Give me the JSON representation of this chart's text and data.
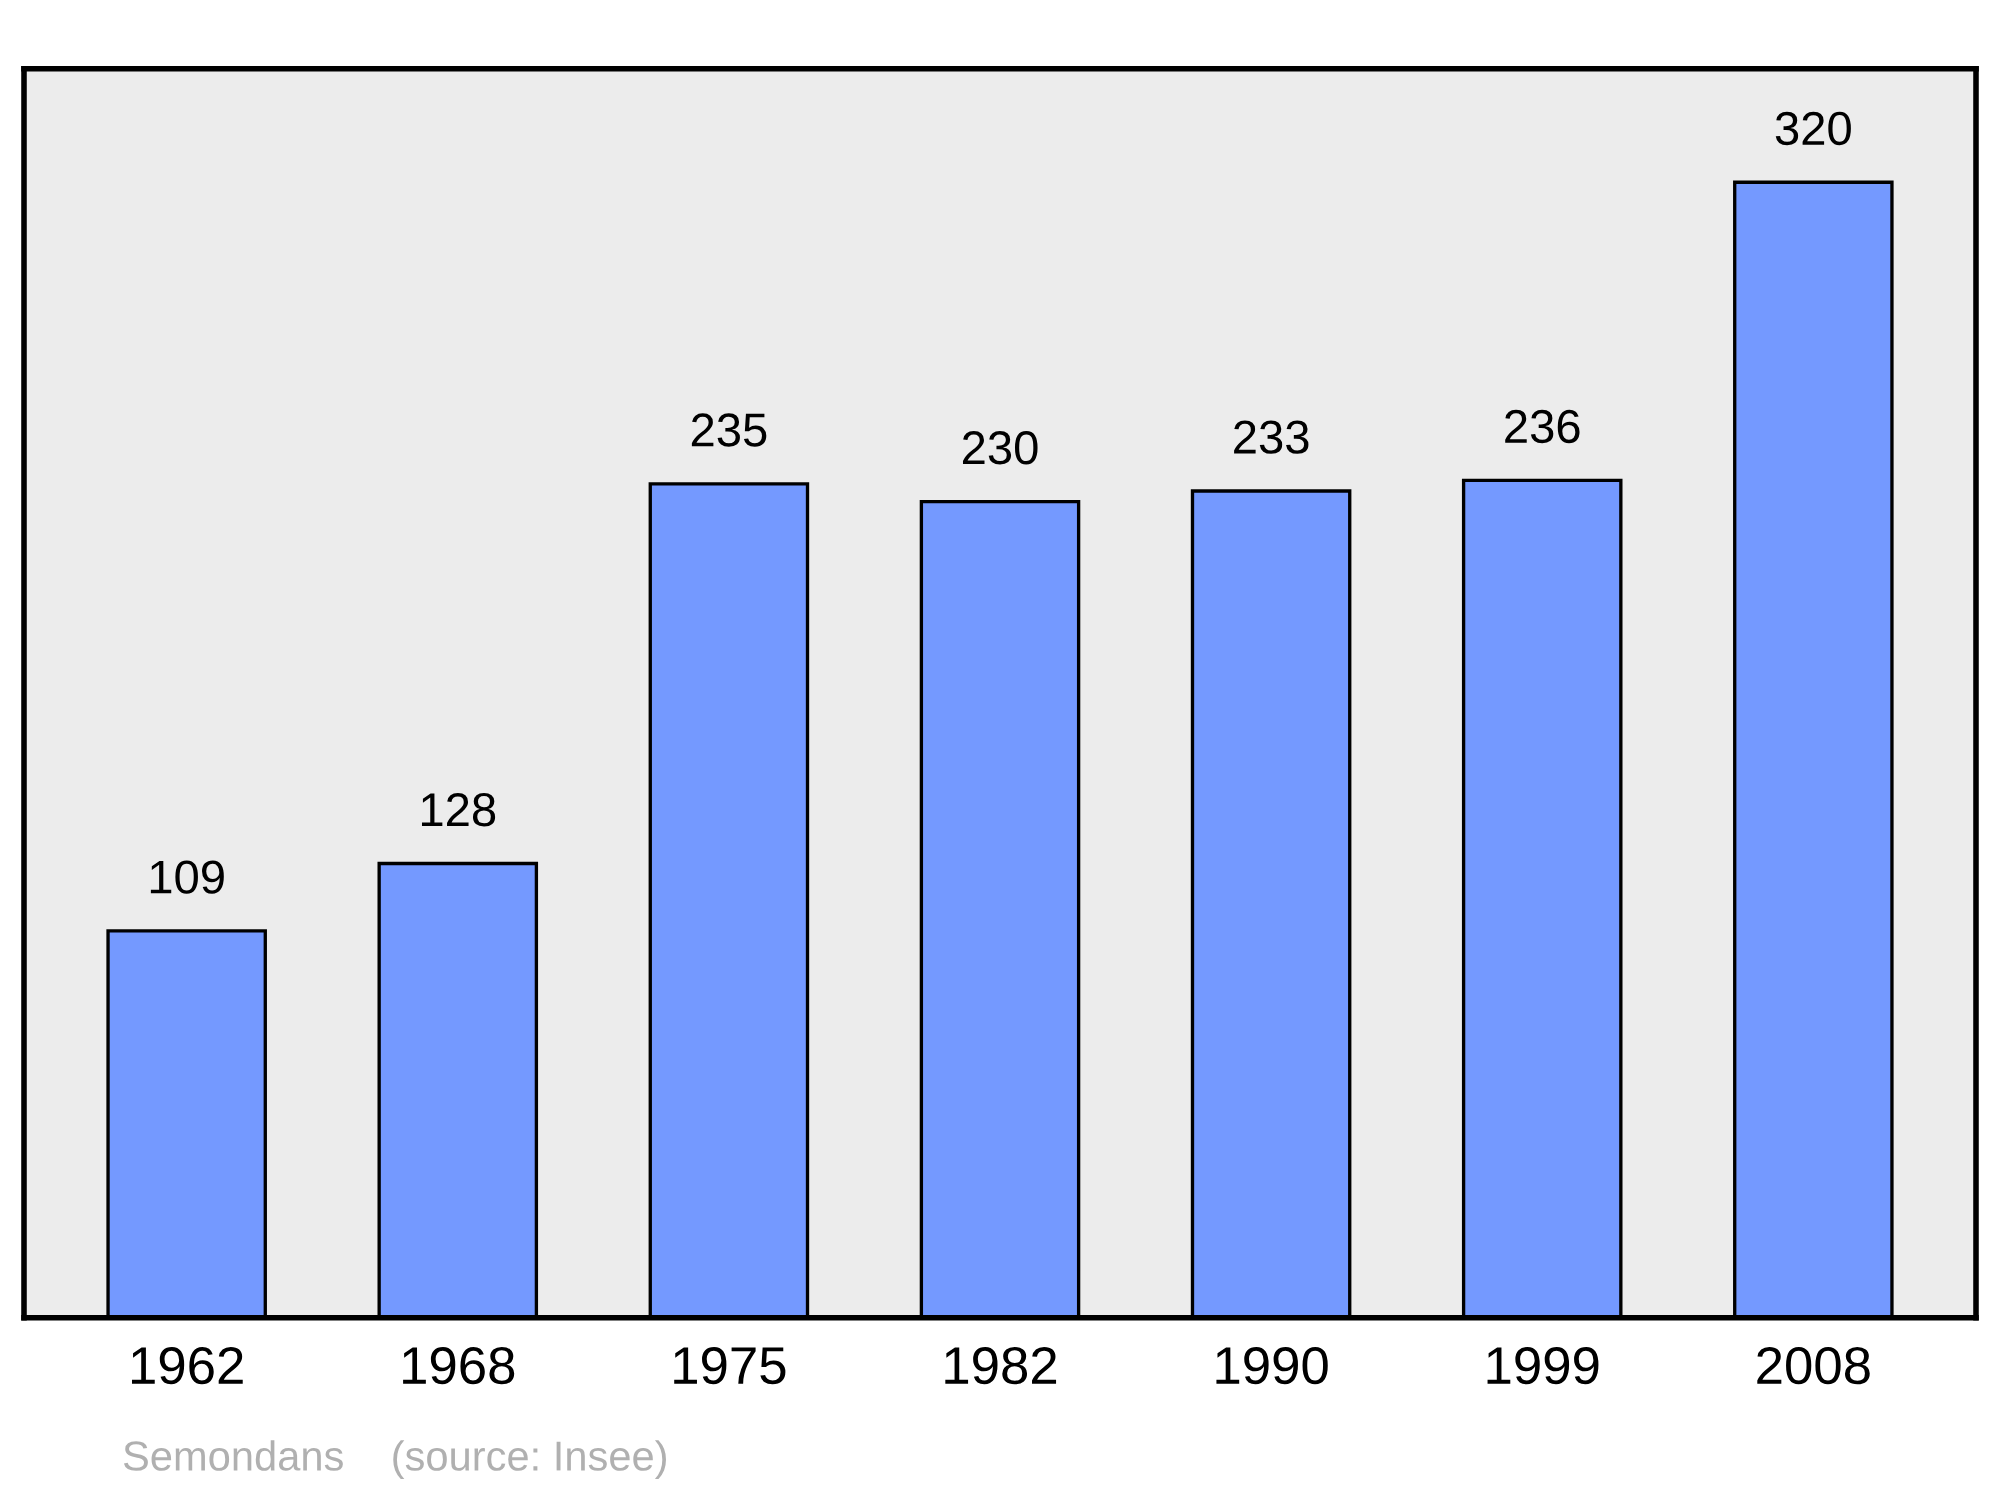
{
  "chart_data": {
    "type": "bar",
    "categories": [
      "1962",
      "1968",
      "1975",
      "1982",
      "1990",
      "1999",
      "2008"
    ],
    "values": [
      109,
      128,
      235,
      230,
      233,
      236,
      320
    ],
    "color": "#7499ff",
    "data_labels": true,
    "tick_labels": "x",
    "grid": false,
    "annotations": [
      "Semondans    (source: Insee)"
    ]
  }
}
